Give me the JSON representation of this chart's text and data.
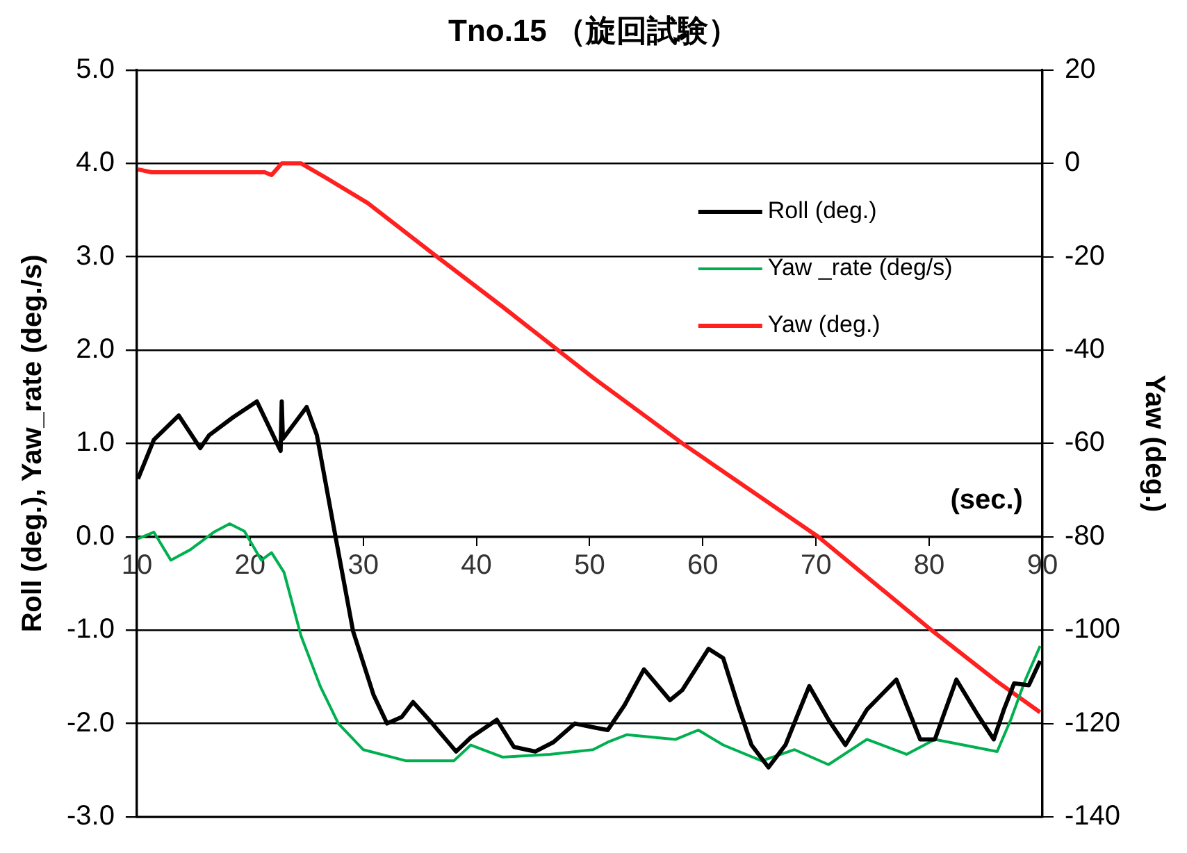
{
  "chart_data": {
    "type": "line",
    "title": "Tno.15 （旋回試験）",
    "xlabel": "(sec.)",
    "ylabel": "Roll (deg.), Yaw_rate (deg./s)",
    "y2label": "Yaw (deg.)",
    "xlim": [
      10,
      90
    ],
    "xticks": [
      10,
      20,
      30,
      40,
      50,
      60,
      70,
      80,
      90
    ],
    "ylim": [
      -3,
      5
    ],
    "yticks": [
      {
        "value": -3,
        "label": "-3.0"
      },
      {
        "value": -2,
        "label": "-2.0"
      },
      {
        "value": -1,
        "label": "-1.0"
      },
      {
        "value": 0,
        "label": "0.0"
      },
      {
        "value": 1,
        "label": "1.0"
      },
      {
        "value": 2,
        "label": "2.0"
      },
      {
        "value": 3,
        "label": "3.0"
      },
      {
        "value": 4,
        "label": "4.0"
      },
      {
        "value": 5,
        "label": "5.0"
      }
    ],
    "y2lim": [
      -140,
      20
    ],
    "y2ticks": [
      -140,
      -120,
      -100,
      -80,
      -60,
      -40,
      -20,
      0,
      20
    ],
    "grid": "y",
    "legend": "top right",
    "marker": "none",
    "line_style": "solid",
    "series": [
      {
        "name": "Roll (deg.)",
        "color": "#000000",
        "x": [
          10.1,
          11.5,
          13.7,
          15.6,
          16.4,
          18.5,
          20.6,
          22.7,
          22.8,
          22.9,
          25.0,
          25.9,
          27.4,
          29.1,
          30.9,
          32.1,
          33.4,
          34.4,
          36.1,
          38.2,
          39.5,
          41.8,
          43.3,
          45.2,
          46.8,
          48.7,
          50.3,
          51.6,
          53.1,
          54.8,
          57.1,
          58.2,
          60.5,
          61.8,
          63.1,
          64.3,
          65.8,
          67.3,
          69.4,
          71.1,
          72.6,
          74.5,
          77.1,
          79.2,
          80.5,
          82.4,
          84.3,
          85.7,
          86.6,
          87.5,
          88.8,
          89.8
        ],
        "values": [
          0.62,
          1.04,
          1.3,
          0.95,
          1.09,
          1.28,
          1.45,
          0.92,
          1.45,
          1.05,
          1.39,
          1.09,
          0.1,
          -1.01,
          -1.69,
          -2.0,
          -1.93,
          -1.77,
          -2.0,
          -2.3,
          -2.15,
          -1.96,
          -2.25,
          -2.3,
          -2.2,
          -2.0,
          -2.04,
          -2.07,
          -1.8,
          -1.42,
          -1.75,
          -1.64,
          -1.2,
          -1.3,
          -1.8,
          -2.23,
          -2.47,
          -2.23,
          -1.6,
          -1.96,
          -2.23,
          -1.85,
          -1.53,
          -2.17,
          -2.17,
          -1.53,
          -1.91,
          -2.17,
          -1.85,
          -1.57,
          -1.59,
          -1.33
        ]
      },
      {
        "name": "Yaw _rate (deg/s)",
        "color": "#00b050",
        "x": [
          10.1,
          11.5,
          13.0,
          14.7,
          16.8,
          18.2,
          19.5,
          21.0,
          21.9,
          23.0,
          24.5,
          26.2,
          27.8,
          30.0,
          33.8,
          38.0,
          39.5,
          42.3,
          46.5,
          50.3,
          51.6,
          53.3,
          57.6,
          59.6,
          61.8,
          65.2,
          68.1,
          71.1,
          74.5,
          78.0,
          80.5,
          86.0,
          87.2,
          88.5,
          89.8
        ],
        "values": [
          -0.02,
          0.05,
          -0.25,
          -0.14,
          0.05,
          0.14,
          0.06,
          -0.25,
          -0.17,
          -0.38,
          -1.06,
          -1.6,
          -2.0,
          -2.28,
          -2.4,
          -2.4,
          -2.23,
          -2.36,
          -2.33,
          -2.28,
          -2.2,
          -2.12,
          -2.17,
          -2.07,
          -2.23,
          -2.4,
          -2.28,
          -2.44,
          -2.17,
          -2.33,
          -2.17,
          -2.3,
          -1.96,
          -1.53,
          -1.17
        ]
      },
      {
        "name": "Yaw (deg.)",
        "color": "#ff2020",
        "axis": "y2",
        "x": [
          10.1,
          11.3,
          21.3,
          21.9,
          22.8,
          24.5,
          26.5,
          30.4,
          36.3,
          42.3,
          50.3,
          58.2,
          70.2,
          80.2,
          86.0,
          89.8
        ],
        "values": [
          -1.3,
          -1.9,
          -1.9,
          -2.5,
          0,
          0,
          -2.8,
          -8.5,
          -19.6,
          -30.7,
          -45.9,
          -60,
          -80,
          -100,
          -111,
          -117.6
        ]
      }
    ]
  }
}
